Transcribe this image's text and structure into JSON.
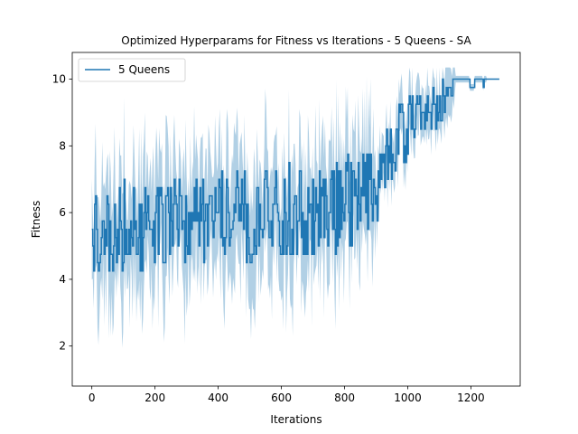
{
  "chart_data": {
    "type": "line",
    "title": "Optimized Hyperparams for Fitness vs Iterations - 5 Queens - SA",
    "xlabel": "Iterations",
    "ylabel": "Fitness",
    "xlim": [
      -62,
      1356
    ],
    "ylim": [
      0.8,
      10.8
    ],
    "xticks": [
      0,
      200,
      400,
      600,
      800,
      1000,
      1200
    ],
    "yticks": [
      2,
      4,
      6,
      8,
      10
    ],
    "grid": false,
    "legend_position": "top-left",
    "line_color": "#1f77b4",
    "band_color": "#1f77b4",
    "series": [
      {
        "name": "5 Queens",
        "x_max": 1290,
        "mean_anchors": [
          [
            0,
            5.6
          ],
          [
            100,
            5.6
          ],
          [
            200,
            5.6
          ],
          [
            400,
            5.8
          ],
          [
            600,
            6.0
          ],
          [
            800,
            6.2
          ],
          [
            900,
            6.8
          ],
          [
            950,
            7.8
          ],
          [
            1000,
            8.8
          ],
          [
            1050,
            9.0
          ],
          [
            1100,
            9.2
          ],
          [
            1130,
            9.7
          ],
          [
            1150,
            10.0
          ],
          [
            1290,
            10.0
          ]
        ],
        "mean_min": 3.75,
        "mean_max": 10.0,
        "ci_min": 1.4,
        "ci_max": 10.35
      }
    ]
  }
}
